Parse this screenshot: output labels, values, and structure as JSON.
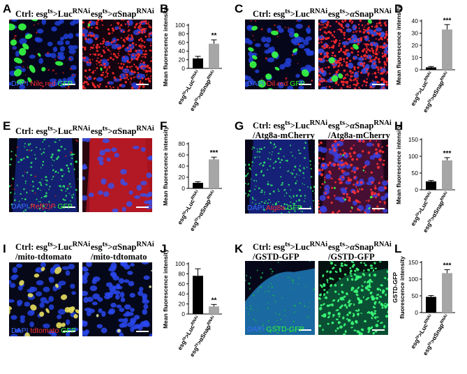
{
  "panels": {
    "A": {
      "letter": "A",
      "title_ctrl": "Ctrl: esg<sup>ts</sup>&gt;Luc<sup>RNAi</sup>",
      "title_exp": "esg<sup>ts</sup>&gt;<i>α</i>Snap<sup>RNAi</sup>",
      "stain": [
        {
          "t": "DAPI",
          "c": "#3b6cff"
        },
        {
          "t": " Nile red",
          "c": "#ff3030"
        },
        {
          "t": " GFP",
          "c": "#33ff33"
        }
      ]
    },
    "C": {
      "letter": "C",
      "title_ctrl": "Ctrl: esg<sup>ts</sup>&gt;Luc<sup>RNAi</sup>",
      "title_exp": "esg<sup>ts</sup>&gt;<i>α</i>Snap<sup>RNAi</sup>",
      "stain": [
        {
          "t": "DAPI",
          "c": "#3b6cff"
        },
        {
          "t": " Oil red",
          "c": "#ff3030"
        },
        {
          "t": " GFP",
          "c": "#33ff33"
        }
      ]
    },
    "E": {
      "letter": "E",
      "title_ctrl": "Ctrl: esg<sup>ts</sup>&gt;Luc<sup>RNAi</sup>",
      "title_exp": "esg<sup>ts</sup>&gt;<i>α</i>Snap<sup>RNAi</sup>",
      "stain": [
        {
          "t": "DAPI",
          "c": "#3b6cff"
        },
        {
          "t": " Ref(2)P",
          "c": "#ff3030"
        },
        {
          "t": " GFP",
          "c": "#33ff33"
        }
      ]
    },
    "G": {
      "letter": "G",
      "title_ctrl": "Ctrl: esg<sup>ts</sup>&gt;Luc<sup>RNAi</sup><br>/Atg8a-mCherry",
      "title_exp": "esg<sup>ts</sup>&gt;<i>α</i>Snap<sup>RNAi</sup><br>/Atg8a-mCherry",
      "stain": [
        {
          "t": "DAPI",
          "c": "#3b6cff"
        },
        {
          "t": " Atg8a",
          "c": "#ff3030"
        },
        {
          "t": " GFP",
          "c": "#33ff33"
        }
      ]
    },
    "I": {
      "letter": "I",
      "title_ctrl": "Ctrl: esg<sup>ts</sup>&gt;Luc<sup>RNAi</sup><br>/mito-tdtomato",
      "title_exp": "esg<sup>ts</sup>&gt;<i>α</i>Snap<sup>RNAi</sup><br>/mito-tdtomato",
      "stain": [
        {
          "t": "DAPI",
          "c": "#3b6cff"
        },
        {
          "t": " tdtomato",
          "c": "#ff3030"
        },
        {
          "t": " GFP",
          "c": "#33ff33"
        }
      ]
    },
    "K": {
      "letter": "K",
      "title_ctrl": "Ctrl: esg<sup>ts</sup>&gt;Luc<sup>RNAi</sup><br>/GSTD-GFP",
      "title_exp": "esg<sup>ts</sup>&gt;<i>α</i>Snap<sup>RNAi</sup><br>/GSTD-GFP",
      "stain": [
        {
          "t": "DAPI",
          "c": "#3b6cff"
        },
        {
          "t": " GSTD-GFP",
          "c": "#33ff33"
        }
      ]
    }
  },
  "chart_data": [
    {
      "letter": "B",
      "type": "bar",
      "ylabel": "Mean fluorescence intensity",
      "ylim": [
        0,
        100
      ],
      "yticks": [
        0,
        20,
        40,
        60,
        80,
        100
      ],
      "categories": [
        "esg<tspan baseline-shift='super' font-size='6'>ts</tspan>&gt;Luc<tspan baseline-shift='super' font-size='6'>RNAi</tspan>",
        "esg<tspan baseline-shift='super' font-size='6'>ts</tspan>&gt;αSnap<tspan baseline-shift='super' font-size='6'>RNAi</tspan>"
      ],
      "values": [
        23,
        57
      ],
      "errors": [
        5,
        9
      ],
      "colors": [
        "#000000",
        "#a6a6a6"
      ],
      "significance": "**"
    },
    {
      "letter": "D",
      "type": "bar",
      "ylabel": "Mean fluorescence intensity",
      "ylim": [
        0,
        40
      ],
      "yticks": [
        0,
        10,
        20,
        30,
        40
      ],
      "categories": [
        "esg<tspan baseline-shift='super' font-size='6'>ts</tspan>&gt;Luc<tspan baseline-shift='super' font-size='6'>RNAi</tspan>",
        "esg<tspan baseline-shift='super' font-size='6'>ts</tspan>&gt;αSnap<tspan baseline-shift='super' font-size='6'>RNAi</tspan>"
      ],
      "values": [
        2,
        33
      ],
      "errors": [
        0.7,
        4
      ],
      "colors": [
        "#000000",
        "#a6a6a6"
      ],
      "significance": "***"
    },
    {
      "letter": "F",
      "type": "bar",
      "ylabel": "Mean fluorescence intensity",
      "ylim": [
        0,
        80
      ],
      "yticks": [
        0,
        20,
        40,
        60,
        80
      ],
      "categories": [
        "esg<tspan baseline-shift='super' font-size='6'>ts</tspan>&gt;Luc<tspan baseline-shift='super' font-size='6'>RNAi</tspan>",
        "esg<tspan baseline-shift='super' font-size='6'>ts</tspan>&gt;αSnap<tspan baseline-shift='super' font-size='6'>RNAi</tspan>"
      ],
      "values": [
        10,
        52
      ],
      "errors": [
        2,
        4
      ],
      "colors": [
        "#000000",
        "#a6a6a6"
      ],
      "significance": "***"
    },
    {
      "letter": "H",
      "type": "bar",
      "ylabel": "Mean fluorescence intensity",
      "ylim": [
        0,
        150
      ],
      "yticks": [
        0,
        50,
        100,
        150
      ],
      "categories": [
        "esg<tspan baseline-shift='super' font-size='6'>ts</tspan>&gt;Luc<tspan baseline-shift='super' font-size='6'>RNAi</tspan>",
        "esg<tspan baseline-shift='super' font-size='6'>ts</tspan>&gt;αSnap<tspan baseline-shift='super' font-size='6'>RNAi</tspan>"
      ],
      "values": [
        25,
        88
      ],
      "errors": [
        3,
        8
      ],
      "colors": [
        "#000000",
        "#a6a6a6"
      ],
      "significance": "***"
    },
    {
      "letter": "J",
      "type": "bar",
      "ylabel": "Mean fluorescence intensity",
      "ylim": [
        0,
        100
      ],
      "yticks": [
        0,
        20,
        40,
        60,
        80,
        100
      ],
      "categories": [
        "esg<tspan baseline-shift='super' font-size='6'>ts</tspan>&gt;Luc<tspan baseline-shift='super' font-size='6'>RNAi</tspan>",
        "esg<tspan baseline-shift='super' font-size='6'>ts</tspan>&gt;αSnap<tspan baseline-shift='super' font-size='6'>RNAi</tspan>"
      ],
      "values": [
        76,
        15
      ],
      "errors": [
        14,
        4
      ],
      "colors": [
        "#000000",
        "#a6a6a6"
      ],
      "significance": "**",
      "sig_on": 1
    },
    {
      "letter": "L",
      "type": "bar",
      "ylabel": "GSTD-GFP\nfluorescence intensity",
      "ylim": [
        0,
        150
      ],
      "yticks": [
        0,
        50,
        100,
        150
      ],
      "categories": [
        "esg<tspan baseline-shift='super' font-size='6'>ts</tspan>&gt;Luc<tspan baseline-shift='super' font-size='6'>RNAi</tspan>",
        "esg<tspan baseline-shift='super' font-size='6'>ts</tspan>&gt;αSnap<tspan baseline-shift='super' font-size='6'>RNAi</tspan>"
      ],
      "values": [
        47,
        118
      ],
      "errors": [
        4,
        10
      ],
      "colors": [
        "#000000",
        "#a6a6a6"
      ],
      "significance": "***"
    }
  ]
}
